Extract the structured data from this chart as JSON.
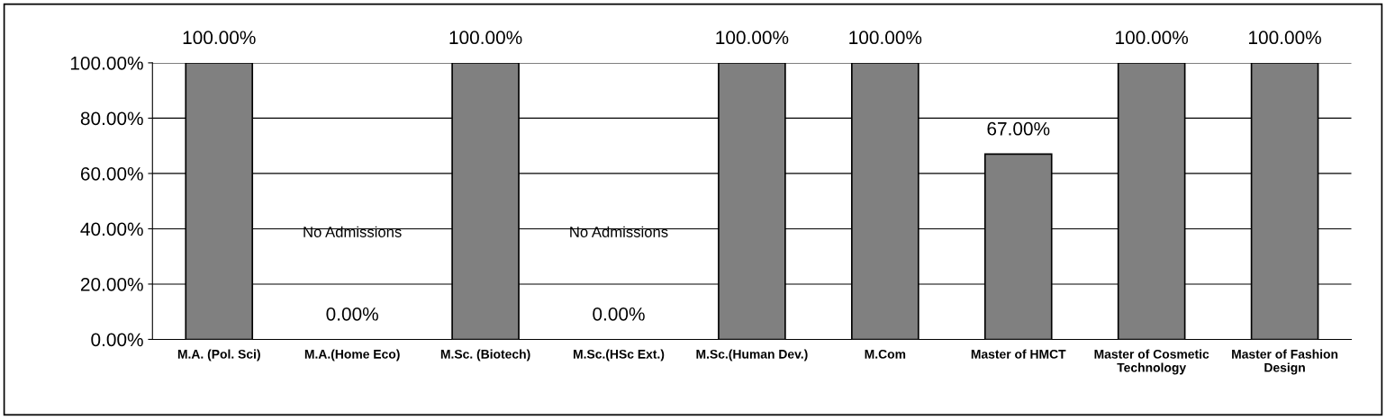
{
  "chart_data": {
    "type": "bar",
    "categories": [
      "M.A. (Pol. Sci)",
      "M.A.(Home Eco)",
      "M.Sc. (Biotech)",
      "M.Sc.(HSc Ext.)",
      "M.Sc.(Human Dev.)",
      "M.Com",
      "Master of HMCT",
      "Master of Cosmetic\nTechnology",
      "Master of Fashion\nDesign"
    ],
    "values": [
      100,
      0,
      100,
      0,
      100,
      100,
      67,
      100,
      100
    ],
    "value_labels": [
      "100.00%",
      "0.00%",
      "100.00%",
      "0.00%",
      "100.00%",
      "100.00%",
      "67.00%",
      "100.00%",
      "100.00%"
    ],
    "color": "#808080",
    "ylim": [
      0,
      100
    ],
    "yticks": [
      {
        "value": 0,
        "label": "0.00%"
      },
      {
        "value": 20,
        "label": "20.00%"
      },
      {
        "value": 40,
        "label": "40.00%"
      },
      {
        "value": 60,
        "label": "60.00%"
      },
      {
        "value": 80,
        "label": "80.00%"
      },
      {
        "value": 100,
        "label": "100.00%"
      }
    ],
    "grid": "y",
    "annotations": [
      "No Admissions",
      "No Admissions"
    ]
  }
}
